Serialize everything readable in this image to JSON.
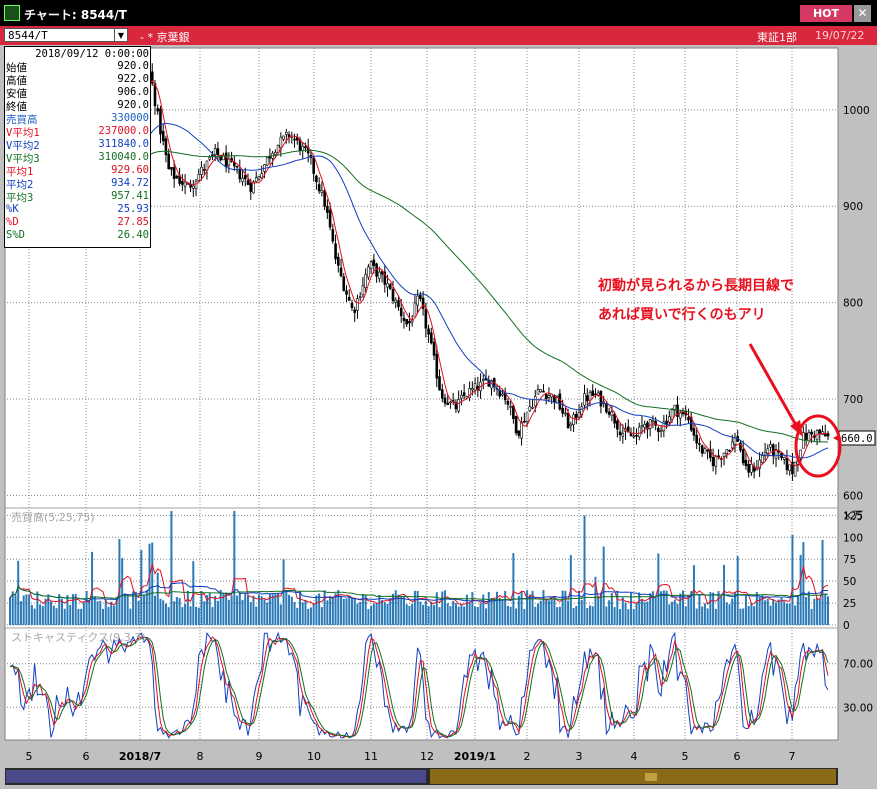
{
  "window": {
    "title": "チャート: 8544/T",
    "hot_label": "HOT",
    "close_glyph": "✕"
  },
  "toolbar": {
    "ticker": "8544/T",
    "name": "- * 京葉銀",
    "market": "東証1部",
    "date": "19/07/22"
  },
  "info": {
    "date": "2018/09/12 0:00:00",
    "rows": [
      {
        "label": "始値",
        "value": "920.0",
        "color": "#000000"
      },
      {
        "label": "高値",
        "value": "922.0",
        "color": "#000000"
      },
      {
        "label": "安値",
        "value": "906.0",
        "color": "#000000"
      },
      {
        "label": "終値",
        "value": "920.0",
        "color": "#000000"
      },
      {
        "label": "売買高",
        "value": "330000",
        "color": "#1a60c0"
      },
      {
        "label": "V平均1",
        "value": "237000.0",
        "color": "#e01020"
      },
      {
        "label": "V平均2",
        "value": "311840.0",
        "color": "#1040c0"
      },
      {
        "label": "V平均3",
        "value": "310040.0",
        "color": "#107020"
      },
      {
        "label": "平均1",
        "value": "929.60",
        "color": "#e01020"
      },
      {
        "label": "平均2",
        "value": "934.72",
        "color": "#1040c0"
      },
      {
        "label": "平均3",
        "value": "957.41",
        "color": "#107020"
      },
      {
        "label": "%K",
        "value": "25.93",
        "color": "#1040c0"
      },
      {
        "label": "%D",
        "value": "27.85",
        "color": "#e01020"
      },
      {
        "label": "S%D",
        "value": "26.40",
        "color": "#107020"
      }
    ]
  },
  "annotation": {
    "line1": "初動が見られるから長期目線で",
    "line2": "あれば買いで行くのもアリ"
  },
  "chart_data": [
    {
      "type": "candlestick",
      "panel": "price",
      "ylim": [
        590,
        1060
      ],
      "yticks": [
        600,
        700,
        800,
        900,
        1000
      ],
      "last_price_label": "660.0",
      "x_labels": [
        "5",
        "6",
        "2018/7",
        "8",
        "9",
        "10",
        "11",
        "12",
        "2019/1",
        "2",
        "3",
        "4",
        "5",
        "6",
        "7"
      ],
      "anchors": [
        [
          0,
          940
        ],
        [
          0.8,
          925
        ],
        [
          1.4,
          955
        ],
        [
          1.9,
          1015
        ],
        [
          2.1,
          1040
        ],
        [
          2.25,
          990
        ],
        [
          2.45,
          935
        ],
        [
          2.8,
          920
        ],
        [
          3.3,
          955
        ],
        [
          3.7,
          935
        ],
        [
          3.95,
          920
        ],
        [
          4.35,
          960
        ],
        [
          4.65,
          975
        ],
        [
          5.0,
          950
        ],
        [
          5.3,
          900
        ],
        [
          5.5,
          840
        ],
        [
          5.8,
          790
        ],
        [
          6.1,
          840
        ],
        [
          6.4,
          820
        ],
        [
          6.8,
          775
        ],
        [
          7.0,
          805
        ],
        [
          7.2,
          760
        ],
        [
          7.4,
          705
        ],
        [
          7.65,
          690
        ],
        [
          7.85,
          705
        ],
        [
          8.0,
          710
        ],
        [
          8.3,
          720
        ],
        [
          8.6,
          700
        ],
        [
          8.8,
          665
        ],
        [
          9.0,
          690
        ],
        [
          9.2,
          710
        ],
        [
          9.5,
          700
        ],
        [
          9.75,
          670
        ],
        [
          10.0,
          700
        ],
        [
          10.2,
          705
        ],
        [
          10.45,
          690
        ],
        [
          10.7,
          665
        ],
        [
          10.95,
          660
        ],
        [
          11.1,
          675
        ],
        [
          11.4,
          670
        ],
        [
          11.65,
          690
        ],
        [
          11.9,
          680
        ],
        [
          12.1,
          650
        ],
        [
          12.35,
          635
        ],
        [
          12.55,
          645
        ],
        [
          12.8,
          660
        ],
        [
          12.95,
          625
        ],
        [
          13.15,
          630
        ],
        [
          13.35,
          650
        ],
        [
          13.55,
          640
        ],
        [
          13.8,
          625
        ],
        [
          14.0,
          660
        ],
        [
          14.25,
          665
        ],
        [
          14.45,
          660
        ]
      ],
      "series": [
        {
          "name": "平均1",
          "color": "#e01020"
        },
        {
          "name": "平均2",
          "color": "#1040c0"
        },
        {
          "name": "平均3",
          "color": "#107020"
        }
      ]
    },
    {
      "type": "bar",
      "panel": "volume",
      "legend": "売買高(5,25,75)",
      "unit": "×万",
      "ylim": [
        0,
        130
      ],
      "yticks": [
        0,
        25,
        50,
        75,
        100,
        125
      ],
      "series": [
        {
          "name": "V平均1",
          "color": "#e01020"
        },
        {
          "name": "V平均2",
          "color": "#1040c0"
        },
        {
          "name": "V平均3",
          "color": "#107020"
        }
      ]
    },
    {
      "type": "line",
      "panel": "stochastics",
      "legend": "ストキャスティクス(9,3,3)",
      "ylim": [
        0,
        100
      ],
      "yticks": [
        30,
        70
      ],
      "ytick_labels": [
        "30.00",
        "70.00"
      ],
      "series": [
        {
          "name": "%K",
          "color": "#1040c0"
        },
        {
          "name": "%D",
          "color": "#e01020"
        },
        {
          "name": "S%D",
          "color": "#107020"
        }
      ]
    }
  ]
}
